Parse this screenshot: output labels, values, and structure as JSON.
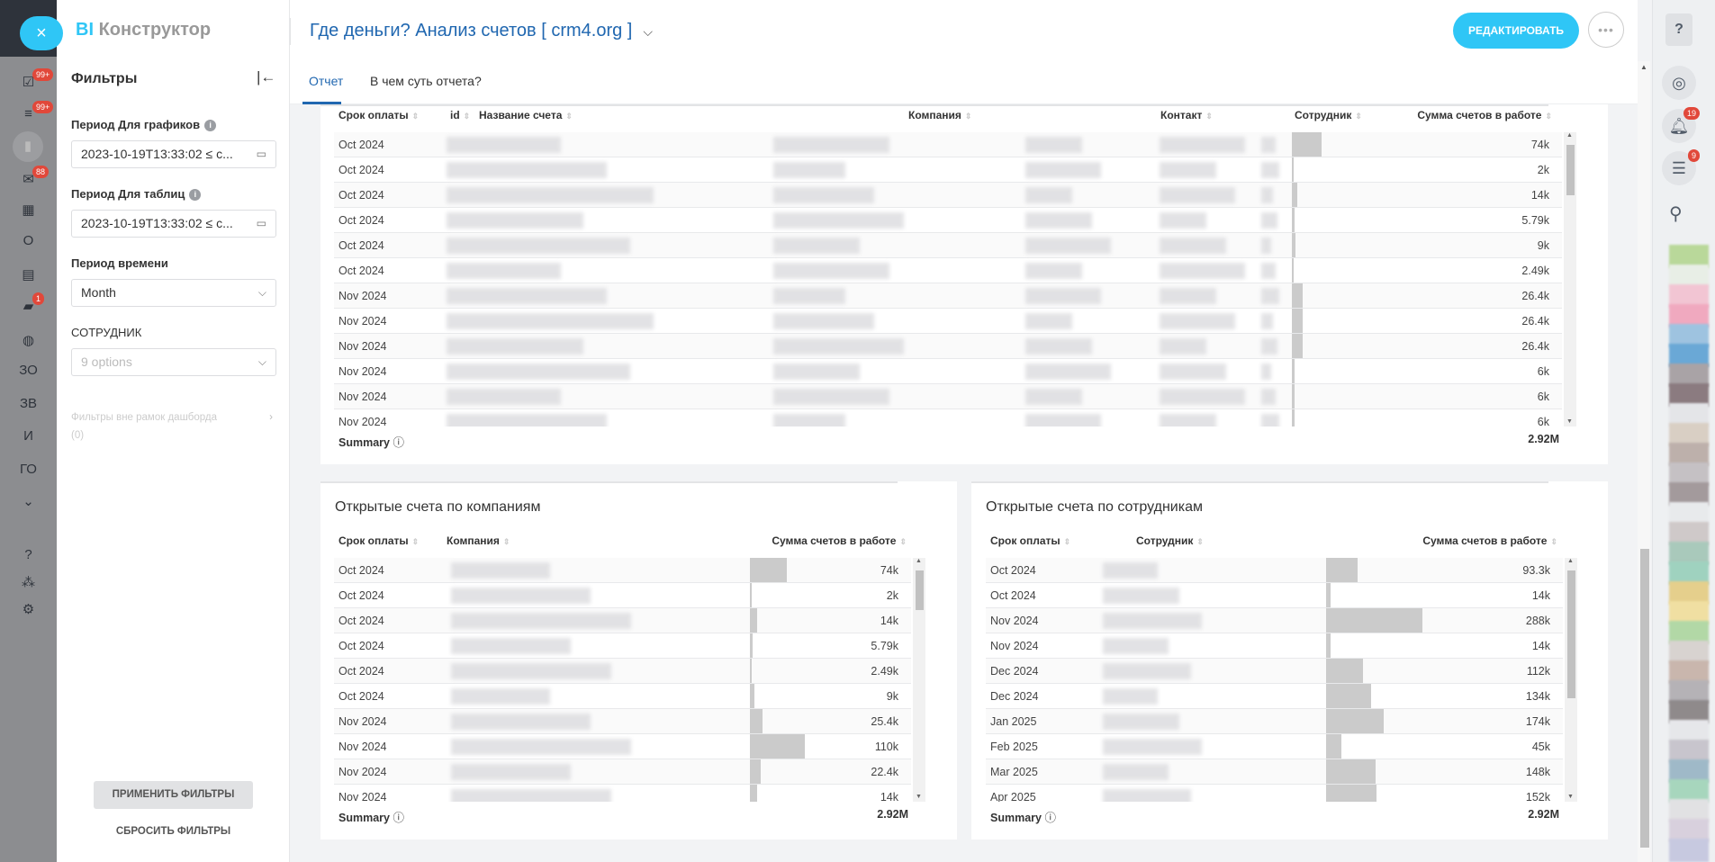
{
  "app": {
    "logo_bi": "BI",
    "logo_name": "Конструктор",
    "title": "Где деньги? Анализ счетов [ crm4.org ]",
    "edit_button": "РЕДАКТИРОВАТЬ",
    "more_button": "•••",
    "accent": "#2fc6f6"
  },
  "leftnav": {
    "close": "×",
    "items": [
      {
        "icon": "tasks-icon",
        "glyph": "☑",
        "badge": "99+"
      },
      {
        "icon": "filter-icon",
        "glyph": "≡",
        "badge": "99+"
      },
      {
        "icon": "analytics-icon",
        "glyph": "▮",
        "badge": ""
      },
      {
        "icon": "mail-icon",
        "glyph": "✉",
        "badge": "88"
      },
      {
        "icon": "calendar-icon",
        "glyph": "▦",
        "badge": ""
      },
      {
        "icon": "o-icon",
        "glyph": "О",
        "badge": ""
      },
      {
        "icon": "contacts-icon",
        "glyph": "▤",
        "badge": ""
      },
      {
        "icon": "chat-icon",
        "glyph": "▰",
        "badge": "1"
      },
      {
        "icon": "robot-icon",
        "glyph": "◍",
        "badge": ""
      },
      {
        "icon": "zo-icon",
        "glyph": "ЗО",
        "badge": ""
      },
      {
        "icon": "zv-icon",
        "glyph": "ЗВ",
        "badge": ""
      },
      {
        "icon": "i-icon",
        "glyph": "И",
        "badge": ""
      },
      {
        "icon": "go-icon",
        "glyph": "ГО",
        "badge": ""
      },
      {
        "icon": "more-down-icon",
        "glyph": "⌄",
        "badge": ""
      },
      {
        "icon": "help-icon",
        "glyph": "?",
        "badge": ""
      },
      {
        "icon": "structure-icon",
        "glyph": "⁂",
        "badge": ""
      },
      {
        "icon": "settings-icon",
        "glyph": "⚙",
        "badge": ""
      }
    ]
  },
  "filters": {
    "title": "Фильтры",
    "collapse_icon": "|←",
    "period_charts_label": "Период Для графиков",
    "period_charts_value": "2023-10-19T13:33:02 ≤ c...",
    "period_tables_label": "Период Для таблиц",
    "period_tables_value": "2023-10-19T13:33:02 ≤ c...",
    "time_period_label": "Период времени",
    "time_period_value": "Month",
    "employee_label": "СОТРУДНИК",
    "employee_placeholder": "9 options",
    "outside_filters_label": "Фильтры вне рамок дашборда",
    "outside_filters_count": "(0)",
    "apply_button": "ПРИМЕНИТЬ ФИЛЬТРЫ",
    "reset_button": "СБРОСИТЬ ФИЛЬТРЫ"
  },
  "tabs": [
    {
      "label": "Отчет",
      "active": true
    },
    {
      "label": "В чем суть отчета?",
      "active": false
    }
  ],
  "invoices_table": {
    "columns": [
      "Срок оплаты",
      "id",
      "Название счета",
      "Компания",
      "Контакт",
      "Сотрудник",
      "Сумма счетов в работе"
    ],
    "rows": [
      {
        "date": "Oct 2024",
        "sum": "74k",
        "value": 74
      },
      {
        "date": "Oct 2024",
        "sum": "2k",
        "value": 2
      },
      {
        "date": "Oct 2024",
        "sum": "14k",
        "value": 14
      },
      {
        "date": "Oct 2024",
        "sum": "5.79k",
        "value": 5.79
      },
      {
        "date": "Oct 2024",
        "sum": "9k",
        "value": 9
      },
      {
        "date": "Oct 2024",
        "sum": "2.49k",
        "value": 2.49
      },
      {
        "date": "Nov 2024",
        "sum": "26.4k",
        "value": 26.4
      },
      {
        "date": "Nov 2024",
        "sum": "26.4k",
        "value": 26.4
      },
      {
        "date": "Nov 2024",
        "sum": "26.4k",
        "value": 26.4
      },
      {
        "date": "Nov 2024",
        "sum": "6k",
        "value": 6
      },
      {
        "date": "Nov 2024",
        "sum": "6k",
        "value": 6
      },
      {
        "date": "Nov 2024",
        "sum": "6k",
        "value": 6
      }
    ],
    "summary_label": "Summary",
    "summary_value": "2.92M"
  },
  "companies_table": {
    "title": "Открытые счета по компаниям",
    "columns": [
      "Срок оплаты",
      "Компания",
      "Сумма счетов в работе"
    ],
    "rows": [
      {
        "date": "Oct 2024",
        "sum": "74k",
        "value": 74
      },
      {
        "date": "Oct 2024",
        "sum": "2k",
        "value": 2
      },
      {
        "date": "Oct 2024",
        "sum": "14k",
        "value": 14
      },
      {
        "date": "Oct 2024",
        "sum": "5.79k",
        "value": 5.79
      },
      {
        "date": "Oct 2024",
        "sum": "2.49k",
        "value": 2.49
      },
      {
        "date": "Oct 2024",
        "sum": "9k",
        "value": 9
      },
      {
        "date": "Nov 2024",
        "sum": "25.4k",
        "value": 25.4
      },
      {
        "date": "Nov 2024",
        "sum": "110k",
        "value": 110
      },
      {
        "date": "Nov 2024",
        "sum": "22.4k",
        "value": 22.4
      },
      {
        "date": "Nov 2024",
        "sum": "14k",
        "value": 14
      }
    ],
    "summary_label": "Summary",
    "summary_value": "2.92M"
  },
  "employees_table": {
    "title": "Открытые счета по сотрудникам",
    "columns": [
      "Срок оплаты",
      "Сотрудник",
      "Сумма счетов в работе"
    ],
    "rows": [
      {
        "date": "Oct 2024",
        "sum": "93.3k",
        "value": 93.3
      },
      {
        "date": "Oct 2024",
        "sum": "14k",
        "value": 14
      },
      {
        "date": "Nov 2024",
        "sum": "288k",
        "value": 288
      },
      {
        "date": "Nov 2024",
        "sum": "14k",
        "value": 14
      },
      {
        "date": "Dec 2024",
        "sum": "112k",
        "value": 112
      },
      {
        "date": "Dec 2024",
        "sum": "134k",
        "value": 134
      },
      {
        "date": "Jan 2025",
        "sum": "174k",
        "value": 174
      },
      {
        "date": "Feb 2025",
        "sum": "45k",
        "value": 45
      },
      {
        "date": "Mar 2025",
        "sum": "148k",
        "value": 148
      },
      {
        "date": "Apr 2025",
        "sum": "152k",
        "value": 152
      }
    ],
    "summary_label": "Summary",
    "summary_value": "2.92M"
  },
  "rightbar": {
    "help": "?",
    "bell_badge": "19",
    "chat_badge": "9"
  }
}
